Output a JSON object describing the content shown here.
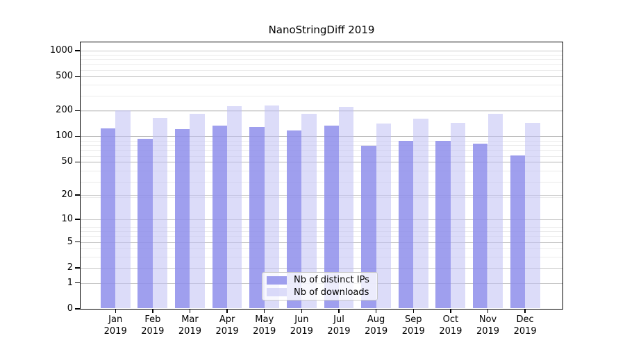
{
  "chart_data": {
    "type": "bar",
    "title": "NanoStringDiff 2019",
    "year_label": "2019",
    "categories": [
      "Jan",
      "Feb",
      "Mar",
      "Apr",
      "May",
      "Jun",
      "Jul",
      "Aug",
      "Sep",
      "Oct",
      "Nov",
      "Dec"
    ],
    "series": [
      {
        "name": "Nb of distinct IPs",
        "color": "rgba(142,142,235,0.85)",
        "values": [
          124,
          93,
          122,
          133,
          128,
          117,
          133,
          77,
          89,
          88,
          82,
          60
        ]
      },
      {
        "name": "Nb of downloads",
        "color": "rgba(191,191,244,0.55)",
        "values": [
          200,
          165,
          185,
          225,
          230,
          185,
          220,
          140,
          160,
          145,
          185,
          145
        ]
      }
    ],
    "y_ticks": [
      0,
      1,
      2,
      5,
      10,
      20,
      50,
      100,
      200,
      500,
      1000
    ],
    "y_tick_labels": [
      "0",
      "1",
      "2",
      "5",
      "10",
      "20",
      "50",
      "100",
      "200",
      "500",
      "1000"
    ],
    "y_scale": "log1p",
    "ylim": [
      0,
      1300
    ],
    "xlabel": "",
    "ylabel": "",
    "grid": true,
    "legend_position": "lower center"
  }
}
